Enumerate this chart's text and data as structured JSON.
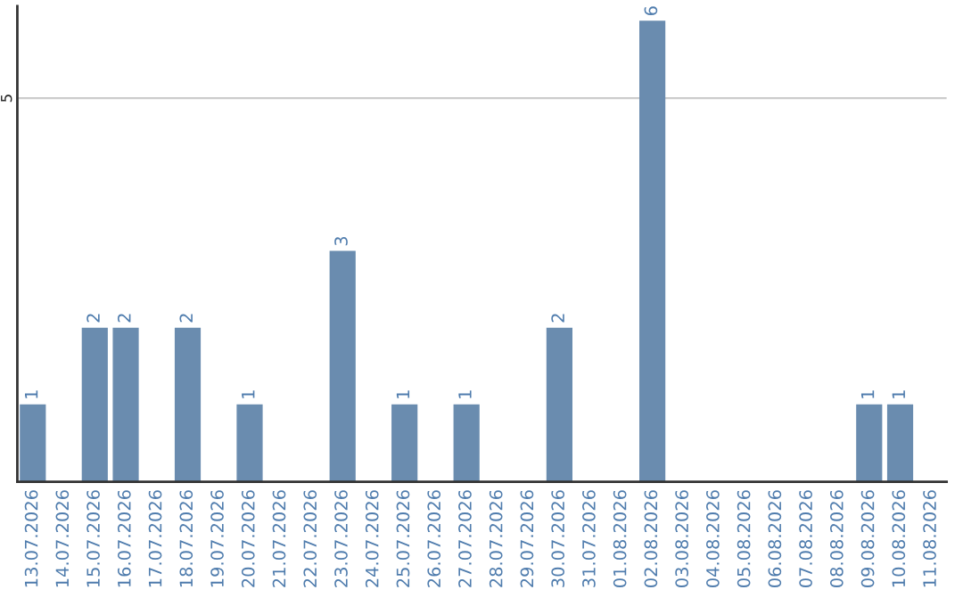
{
  "chart_data": {
    "type": "bar",
    "categories": [
      "13.07.2026",
      "14.07.2026",
      "15.07.2026",
      "16.07.2026",
      "17.07.2026",
      "18.07.2026",
      "19.07.2026",
      "20.07.2026",
      "21.07.2026",
      "22.07.2026",
      "23.07.2026",
      "24.07.2026",
      "25.07.2026",
      "26.07.2026",
      "27.07.2026",
      "28.07.2026",
      "29.07.2026",
      "30.07.2026",
      "31.07.2026",
      "01.08.2026",
      "02.08.2026",
      "03.08.2026",
      "04.08.2026",
      "05.08.2026",
      "06.08.2026",
      "07.08.2026",
      "08.08.2026",
      "09.08.2026",
      "10.08.2026",
      "11.08.2026"
    ],
    "values": [
      1,
      0,
      2,
      2,
      0,
      2,
      0,
      1,
      0,
      0,
      3,
      0,
      1,
      0,
      1,
      0,
      0,
      2,
      0,
      0,
      6,
      0,
      0,
      0,
      0,
      0,
      0,
      1,
      1,
      0
    ],
    "value_labels": [
      "1",
      null,
      "2",
      "2",
      null,
      "2",
      null,
      "1",
      null,
      null,
      "3",
      null,
      "1",
      null,
      "1",
      null,
      null,
      "2",
      null,
      null,
      "6",
      null,
      null,
      null,
      null,
      null,
      null,
      "1",
      "1",
      null
    ],
    "color": "#6a8caf",
    "ylim": [
      0,
      6.2
    ],
    "yticks": [
      5
    ],
    "grid": "y"
  }
}
